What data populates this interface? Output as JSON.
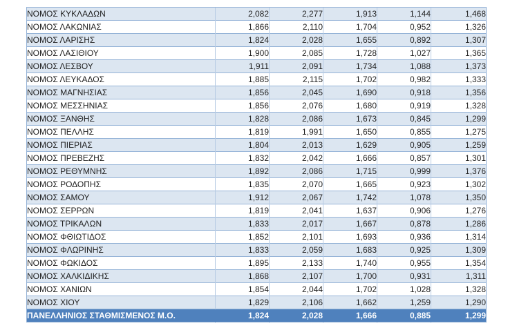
{
  "colors": {
    "stripe": "#DCE6F1",
    "border": "#95B3D7",
    "border_light": "#B8CCE4",
    "footer_bg": "#4F81BD",
    "footer_text": "#FFFFFF",
    "text": "#1F1F1F",
    "page_bg": "#FFFFFF"
  },
  "table": {
    "decimal_format": "comma",
    "rows": [
      {
        "name": "ΝΟΜΟΣ ΚΥΚΛΑΔΩΝ",
        "values": [
          "2,082",
          "2,277",
          "1,913",
          "1,144",
          "1,468"
        ]
      },
      {
        "name": "ΝΟΜΟΣ ΛΑΚΩΝΙΑΣ",
        "values": [
          "1,866",
          "2,110",
          "1,704",
          "0,952",
          "1,326"
        ]
      },
      {
        "name": "ΝΟΜΟΣ ΛΑΡΙΣΗΣ",
        "values": [
          "1,824",
          "2,028",
          "1,655",
          "0,892",
          "1,307"
        ]
      },
      {
        "name": "ΝΟΜΟΣ ΛΑΣΙΘΙΟΥ",
        "values": [
          "1,900",
          "2,085",
          "1,728",
          "1,027",
          "1,365"
        ]
      },
      {
        "name": "ΝΟΜΟΣ ΛΕΣΒΟΥ",
        "values": [
          "1,911",
          "2,091",
          "1,734",
          "1,088",
          "1,373"
        ]
      },
      {
        "name": "ΝΟΜΟΣ ΛΕΥΚΑΔΟΣ",
        "values": [
          "1,885",
          "2,115",
          "1,702",
          "0,982",
          "1,333"
        ]
      },
      {
        "name": "ΝΟΜΟΣ ΜΑΓΝΗΣΙΑΣ",
        "values": [
          "1,856",
          "2,045",
          "1,690",
          "0,918",
          "1,356"
        ]
      },
      {
        "name": "ΝΟΜΟΣ ΜΕΣΣΗΝΙΑΣ",
        "values": [
          "1,856",
          "2,076",
          "1,680",
          "0,919",
          "1,328"
        ]
      },
      {
        "name": "ΝΟΜΟΣ ΞΑΝΘΗΣ",
        "values": [
          "1,828",
          "2,086",
          "1,673",
          "0,845",
          "1,299"
        ]
      },
      {
        "name": "ΝΟΜΟΣ ΠΕΛΛΗΣ",
        "values": [
          "1,819",
          "1,991",
          "1,650",
          "0,855",
          "1,275"
        ]
      },
      {
        "name": "ΝΟΜΟΣ ΠΙΕΡΙΑΣ",
        "values": [
          "1,804",
          "2,013",
          "1,629",
          "0,905",
          "1,259"
        ]
      },
      {
        "name": "ΝΟΜΟΣ ΠΡΕΒΕΖΗΣ",
        "values": [
          "1,832",
          "2,042",
          "1,666",
          "0,857",
          "1,301"
        ]
      },
      {
        "name": "ΝΟΜΟΣ ΡΕΘΥΜΝΗΣ",
        "values": [
          "1,892",
          "2,086",
          "1,715",
          "0,999",
          "1,376"
        ]
      },
      {
        "name": "ΝΟΜΟΣ ΡΟΔΟΠΗΣ",
        "values": [
          "1,835",
          "2,070",
          "1,665",
          "0,923",
          "1,302"
        ]
      },
      {
        "name": "ΝΟΜΟΣ ΣΑΜΟΥ",
        "values": [
          "1,912",
          "2,067",
          "1,742",
          "1,078",
          "1,350"
        ]
      },
      {
        "name": "ΝΟΜΟΣ ΣΕΡΡΩΝ",
        "values": [
          "1,819",
          "2,041",
          "1,637",
          "0,906",
          "1,276"
        ]
      },
      {
        "name": "ΝΟΜΟΣ ΤΡΙΚΑΛΩΝ",
        "values": [
          "1,833",
          "2,017",
          "1,667",
          "0,878",
          "1,286"
        ]
      },
      {
        "name": "ΝΟΜΟΣ ΦΘΙΩΤΙΔΟΣ",
        "values": [
          "1,852",
          "2,101",
          "1,693",
          "0,936",
          "1,314"
        ]
      },
      {
        "name": "ΝΟΜΟΣ ΦΛΩΡΙΝΗΣ",
        "values": [
          "1,833",
          "2,059",
          "1,683",
          "0,925",
          "1,309"
        ]
      },
      {
        "name": "ΝΟΜΟΣ ΦΩΚΙΔΟΣ",
        "values": [
          "1,895",
          "2,133",
          "1,740",
          "0,955",
          "1,354"
        ]
      },
      {
        "name": "ΝΟΜΟΣ ΧΑΛΚΙΔΙΚΗΣ",
        "values": [
          "1,868",
          "2,107",
          "1,700",
          "0,931",
          "1,311"
        ]
      },
      {
        "name": "ΝΟΜΟΣ ΧΑΝΙΩΝ",
        "values": [
          "1,854",
          "2,044",
          "1,702",
          "1,028",
          "1,328"
        ]
      },
      {
        "name": "ΝΟΜΟΣ ΧΙΟΥ",
        "values": [
          "1,829",
          "2,106",
          "1,662",
          "1,259",
          "1,290"
        ]
      }
    ],
    "footer": {
      "name": "ΠΑΝΕΛΛΗΝΙΟΣ ΣΤΑΘΜΙΣΜΕΝΟΣ Μ.Ο.",
      "values": [
        "1,824",
        "2,028",
        "1,666",
        "0,885",
        "1,299"
      ]
    }
  }
}
